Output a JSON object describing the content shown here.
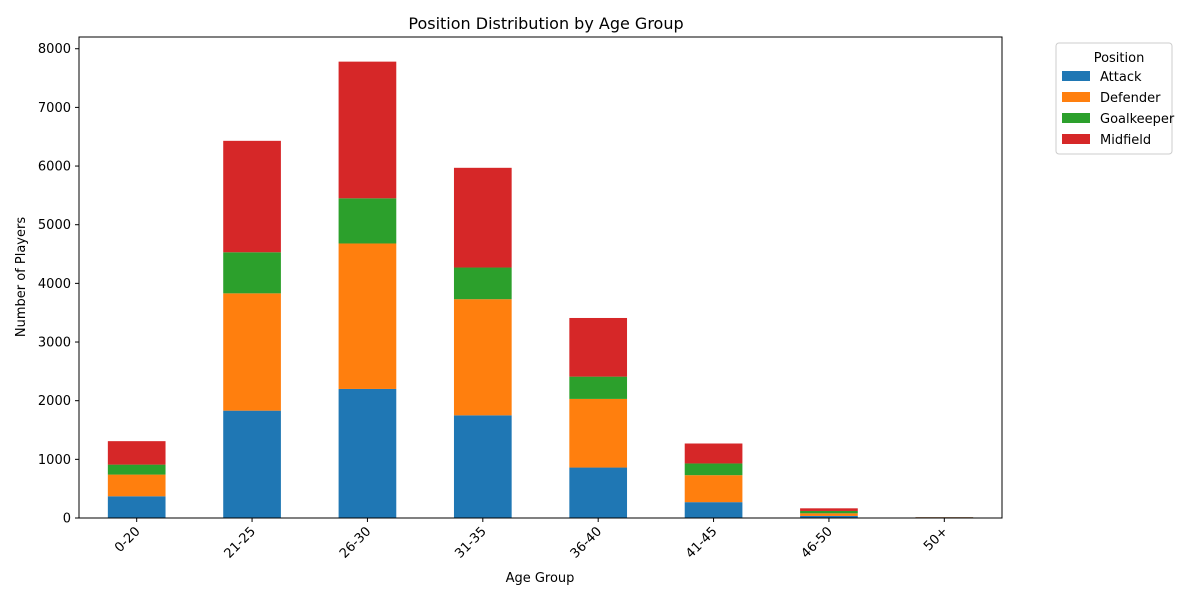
{
  "chart_data": {
    "type": "bar",
    "stacked": true,
    "title": "Position Distribution by Age Group",
    "xlabel": "Age Group",
    "ylabel": "Number of Players",
    "ylim": [
      0,
      8200
    ],
    "yticks": [
      0,
      1000,
      2000,
      3000,
      4000,
      5000,
      6000,
      7000,
      8000
    ],
    "categories": [
      "0-20",
      "21-25",
      "26-30",
      "31-35",
      "36-40",
      "41-45",
      "46-50",
      "50+"
    ],
    "series": [
      {
        "name": "Attack",
        "color": "#1f77b4",
        "values": [
          370,
          1830,
          2200,
          1750,
          860,
          270,
          35,
          3
        ]
      },
      {
        "name": "Defender",
        "color": "#ff7f0e",
        "values": [
          370,
          2000,
          2480,
          1980,
          1170,
          460,
          45,
          4
        ]
      },
      {
        "name": "Goalkeeper",
        "color": "#2ca02c",
        "values": [
          170,
          700,
          770,
          540,
          380,
          200,
          40,
          5
        ]
      },
      {
        "name": "Midfield",
        "color": "#d62728",
        "values": [
          400,
          1900,
          2330,
          1700,
          1000,
          340,
          45,
          3
        ]
      }
    ],
    "legend": {
      "title": "Position",
      "placement": "outside-top-right"
    },
    "grid": false
  }
}
